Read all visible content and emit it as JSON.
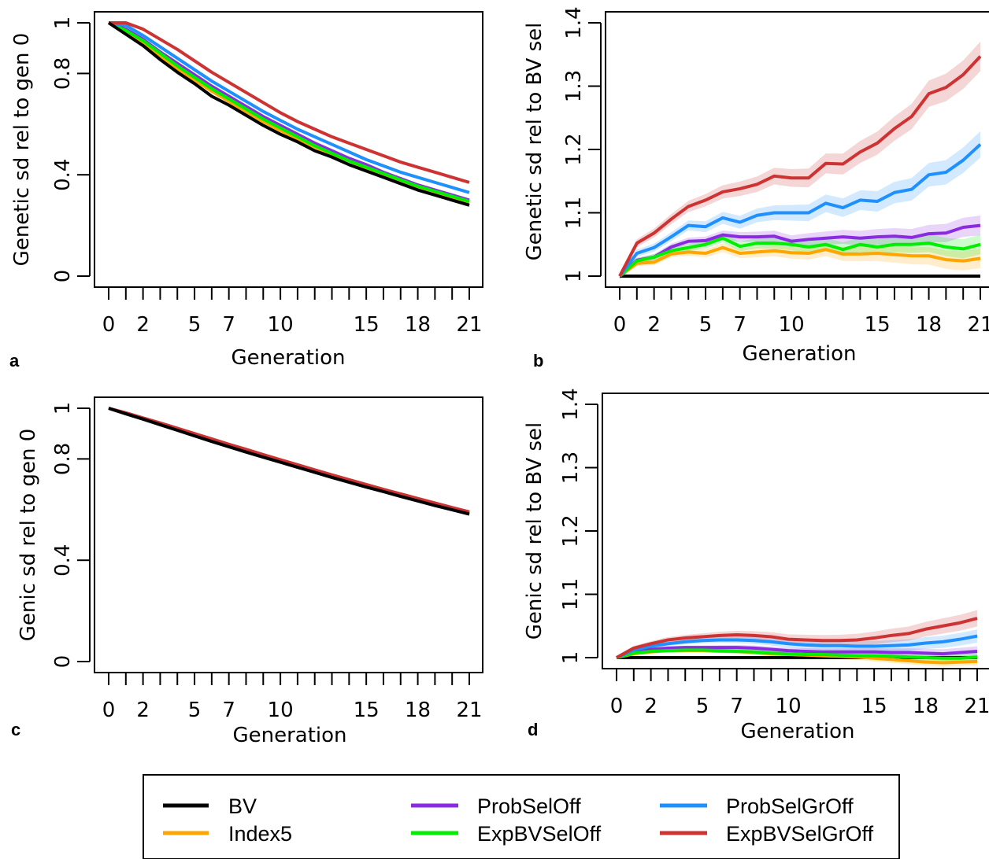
{
  "legend": {
    "entries": [
      {
        "name": "BV",
        "color": "#000000"
      },
      {
        "name": "Index5",
        "color": "#FFA500"
      },
      {
        "name": "ProbSelOff",
        "color": "#8A2BE2"
      },
      {
        "name": "ExpBVSelOff",
        "color": "#00EE00"
      },
      {
        "name": "ProbSelGrOff",
        "color": "#1E90FF"
      },
      {
        "name": "ExpBVSelGrOff",
        "color": "#CD3333"
      }
    ]
  },
  "chart_data": [
    {
      "panel": "a",
      "type": "line",
      "xlabel": "Generation",
      "ylabel": "Genetic sd rel to gen 0",
      "xlim": [
        0,
        21
      ],
      "ylim": [
        0,
        1
      ],
      "xticks": [
        0,
        2,
        5,
        7,
        10,
        15,
        18,
        21
      ],
      "yticks": [
        0,
        0.4,
        0.8,
        1
      ],
      "ytick_labels": [
        "0",
        "0.4",
        "0.8",
        "1"
      ],
      "x": [
        0,
        1,
        2,
        3,
        4,
        5,
        6,
        7,
        8,
        9,
        10,
        11,
        12,
        13,
        14,
        15,
        16,
        17,
        18,
        19,
        20,
        21
      ],
      "series": [
        {
          "name": "BV",
          "values": [
            1,
            0.955,
            0.91,
            0.855,
            0.805,
            0.76,
            0.71,
            0.675,
            0.635,
            0.595,
            0.56,
            0.53,
            0.495,
            0.47,
            0.44,
            0.415,
            0.39,
            0.365,
            0.34,
            0.32,
            0.3,
            0.28
          ]
        },
        {
          "name": "Index5",
          "values": [
            1,
            0.96,
            0.92,
            0.87,
            0.82,
            0.775,
            0.73,
            0.69,
            0.65,
            0.61,
            0.575,
            0.54,
            0.51,
            0.48,
            0.455,
            0.425,
            0.4,
            0.375,
            0.35,
            0.33,
            0.31,
            0.29
          ]
        },
        {
          "name": "ProbSelOff",
          "values": [
            1,
            0.975,
            0.935,
            0.885,
            0.84,
            0.795,
            0.75,
            0.71,
            0.67,
            0.63,
            0.595,
            0.56,
            0.525,
            0.495,
            0.465,
            0.44,
            0.41,
            0.385,
            0.36,
            0.34,
            0.32,
            0.3
          ]
        },
        {
          "name": "ExpBVSelOff",
          "values": [
            1,
            0.97,
            0.93,
            0.88,
            0.83,
            0.785,
            0.74,
            0.7,
            0.66,
            0.62,
            0.585,
            0.55,
            0.515,
            0.485,
            0.455,
            0.43,
            0.405,
            0.38,
            0.355,
            0.335,
            0.315,
            0.295
          ]
        },
        {
          "name": "ProbSelGrOff",
          "values": [
            1,
            0.99,
            0.95,
            0.905,
            0.86,
            0.815,
            0.77,
            0.73,
            0.69,
            0.65,
            0.615,
            0.58,
            0.55,
            0.52,
            0.49,
            0.46,
            0.435,
            0.41,
            0.39,
            0.37,
            0.35,
            0.33
          ]
        },
        {
          "name": "ExpBVSelGrOff",
          "values": [
            1,
            1,
            0.975,
            0.935,
            0.895,
            0.85,
            0.805,
            0.765,
            0.725,
            0.685,
            0.645,
            0.61,
            0.58,
            0.55,
            0.525,
            0.5,
            0.475,
            0.45,
            0.43,
            0.41,
            0.39,
            0.37
          ]
        }
      ]
    },
    {
      "panel": "b",
      "type": "line",
      "xlabel": "Generation",
      "ylabel": "Genetic sd rel to BV sel",
      "xlim": [
        0,
        21
      ],
      "ylim": [
        1,
        1.4
      ],
      "xticks": [
        0,
        2,
        5,
        7,
        10,
        15,
        18,
        21
      ],
      "yticks": [
        1,
        1.1,
        1.2,
        1.3,
        1.4
      ],
      "ytick_labels": [
        "1",
        "1.1",
        "1.2",
        "1.3",
        "1.4"
      ],
      "x": [
        0,
        1,
        2,
        3,
        4,
        5,
        6,
        7,
        8,
        9,
        10,
        11,
        12,
        13,
        14,
        15,
        16,
        17,
        18,
        19,
        20,
        21
      ],
      "series": [
        {
          "name": "BV",
          "values": [
            1,
            1,
            1,
            1,
            1,
            1,
            1,
            1,
            1,
            1,
            1,
            1,
            1,
            1,
            1,
            1,
            1,
            1,
            1,
            1,
            1,
            1
          ]
        },
        {
          "name": "Index5",
          "values": [
            1,
            1.02,
            1.022,
            1.035,
            1.038,
            1.036,
            1.045,
            1.036,
            1.038,
            1.04,
            1.037,
            1.036,
            1.042,
            1.035,
            1.035,
            1.036,
            1.034,
            1.032,
            1.032,
            1.026,
            1.024,
            1.028
          ],
          "band": 0.012
        },
        {
          "name": "ProbSelOff",
          "values": [
            1,
            1.025,
            1.03,
            1.046,
            1.055,
            1.056,
            1.065,
            1.062,
            1.062,
            1.063,
            1.055,
            1.058,
            1.06,
            1.062,
            1.06,
            1.062,
            1.063,
            1.061,
            1.067,
            1.068,
            1.077,
            1.08
          ],
          "band": 0.012
        },
        {
          "name": "ExpBVSelOff",
          "values": [
            1,
            1.024,
            1.03,
            1.04,
            1.045,
            1.05,
            1.06,
            1.047,
            1.052,
            1.052,
            1.05,
            1.046,
            1.05,
            1.042,
            1.05,
            1.046,
            1.05,
            1.05,
            1.052,
            1.046,
            1.043,
            1.05
          ],
          "band": 0.012
        },
        {
          "name": "ProbSelGrOff",
          "values": [
            1,
            1.036,
            1.045,
            1.062,
            1.08,
            1.078,
            1.092,
            1.085,
            1.096,
            1.1,
            1.1,
            1.1,
            1.115,
            1.108,
            1.12,
            1.118,
            1.132,
            1.137,
            1.16,
            1.164,
            1.183,
            1.208
          ],
          "band": 0.016
        },
        {
          "name": "ExpBVSelGrOff",
          "values": [
            1,
            1.052,
            1.068,
            1.09,
            1.11,
            1.12,
            1.133,
            1.138,
            1.145,
            1.158,
            1.155,
            1.155,
            1.178,
            1.177,
            1.196,
            1.21,
            1.233,
            1.252,
            1.288,
            1.298,
            1.318,
            1.347
          ],
          "band": 0.018
        }
      ]
    },
    {
      "panel": "c",
      "type": "line",
      "xlabel": "Generation",
      "ylabel": "Genic sd rel to gen 0",
      "xlim": [
        0,
        21
      ],
      "ylim": [
        0,
        1
      ],
      "xticks": [
        0,
        2,
        5,
        7,
        10,
        15,
        18,
        21
      ],
      "yticks": [
        0,
        0.4,
        0.8,
        1
      ],
      "ytick_labels": [
        "0",
        "0.4",
        "0.8",
        "1"
      ],
      "x": [
        0,
        1,
        2,
        3,
        4,
        5,
        6,
        7,
        8,
        9,
        10,
        11,
        12,
        13,
        14,
        15,
        16,
        17,
        18,
        19,
        20,
        21
      ],
      "series": [
        {
          "name": "BV",
          "values": [
            1,
            0.978,
            0.957,
            0.935,
            0.913,
            0.891,
            0.869,
            0.848,
            0.827,
            0.807,
            0.787,
            0.767,
            0.747,
            0.727,
            0.708,
            0.689,
            0.671,
            0.652,
            0.634,
            0.616,
            0.599,
            0.582
          ]
        },
        {
          "name": "Index5",
          "values": [
            1,
            0.979,
            0.958,
            0.936,
            0.915,
            0.893,
            0.871,
            0.85,
            0.829,
            0.809,
            0.789,
            0.769,
            0.749,
            0.729,
            0.71,
            0.691,
            0.672,
            0.654,
            0.636,
            0.618,
            0.6,
            0.582
          ]
        },
        {
          "name": "ProbSelOff",
          "values": [
            1,
            0.98,
            0.96,
            0.939,
            0.918,
            0.897,
            0.876,
            0.855,
            0.834,
            0.814,
            0.794,
            0.774,
            0.754,
            0.734,
            0.715,
            0.696,
            0.677,
            0.659,
            0.641,
            0.623,
            0.606,
            0.588
          ]
        },
        {
          "name": "ExpBVSelOff",
          "values": [
            1,
            0.98,
            0.96,
            0.939,
            0.918,
            0.897,
            0.876,
            0.855,
            0.834,
            0.813,
            0.793,
            0.773,
            0.753,
            0.733,
            0.714,
            0.695,
            0.676,
            0.658,
            0.64,
            0.622,
            0.604,
            0.586
          ]
        },
        {
          "name": "ProbSelGrOff",
          "values": [
            1,
            0.981,
            0.961,
            0.94,
            0.919,
            0.898,
            0.877,
            0.856,
            0.835,
            0.815,
            0.795,
            0.775,
            0.755,
            0.735,
            0.716,
            0.697,
            0.678,
            0.66,
            0.642,
            0.624,
            0.607,
            0.59
          ]
        },
        {
          "name": "ExpBVSelGrOff",
          "values": [
            1,
            0.982,
            0.962,
            0.942,
            0.921,
            0.9,
            0.879,
            0.858,
            0.838,
            0.817,
            0.797,
            0.777,
            0.757,
            0.737,
            0.718,
            0.699,
            0.68,
            0.662,
            0.644,
            0.626,
            0.608,
            0.591
          ]
        }
      ]
    },
    {
      "panel": "d",
      "type": "line",
      "xlabel": "Generation",
      "ylabel": "Genic sd rel to BV sel",
      "xlim": [
        0,
        21
      ],
      "ylim": [
        1,
        1.4
      ],
      "xticks": [
        0,
        2,
        5,
        7,
        10,
        15,
        18,
        21
      ],
      "yticks": [
        1,
        1.1,
        1.2,
        1.3,
        1.4
      ],
      "ytick_labels": [
        "1",
        "1.1",
        "1.2",
        "1.3",
        "1.4"
      ],
      "x": [
        0,
        1,
        2,
        3,
        4,
        5,
        6,
        7,
        8,
        9,
        10,
        11,
        12,
        13,
        14,
        15,
        16,
        17,
        18,
        19,
        20,
        21
      ],
      "series": [
        {
          "name": "BV",
          "values": [
            1,
            1,
            1,
            1,
            1,
            1,
            1,
            1,
            1,
            1,
            1,
            1,
            1,
            1,
            1,
            1,
            1,
            1,
            1,
            1,
            1,
            1
          ]
        },
        {
          "name": "Index5",
          "values": [
            1,
            1.006,
            1.009,
            1.011,
            1.011,
            1.011,
            1.01,
            1.01,
            1.008,
            1.006,
            1.005,
            1.004,
            1.003,
            1.002,
            1.001,
            0.999,
            0.997,
            0.995,
            0.993,
            0.992,
            0.993,
            0.994
          ],
          "band": 0.005
        },
        {
          "name": "ProbSelOff",
          "values": [
            1,
            1.01,
            1.013,
            1.015,
            1.016,
            1.016,
            1.016,
            1.016,
            1.015,
            1.013,
            1.011,
            1.01,
            1.009,
            1.009,
            1.009,
            1.009,
            1.008,
            1.008,
            1.007,
            1.006,
            1.008,
            1.01
          ],
          "band": 0.006
        },
        {
          "name": "ExpBVSelOff",
          "values": [
            1,
            1.007,
            1.01,
            1.011,
            1.012,
            1.012,
            1.011,
            1.01,
            1.009,
            1.007,
            1.006,
            1.005,
            1.005,
            1.004,
            1.003,
            1.003,
            1.002,
            1.001,
            1.0,
            0.999,
            0.999,
            1.001
          ],
          "band": 0.006
        },
        {
          "name": "ProbSelGrOff",
          "values": [
            1,
            1.012,
            1.018,
            1.022,
            1.025,
            1.027,
            1.028,
            1.028,
            1.027,
            1.025,
            1.022,
            1.02,
            1.019,
            1.019,
            1.018,
            1.018,
            1.019,
            1.02,
            1.023,
            1.025,
            1.029,
            1.034
          ],
          "band": 0.008
        },
        {
          "name": "ExpBVSelGrOff",
          "values": [
            1,
            1.015,
            1.022,
            1.028,
            1.031,
            1.033,
            1.035,
            1.036,
            1.035,
            1.033,
            1.029,
            1.028,
            1.027,
            1.027,
            1.028,
            1.031,
            1.035,
            1.038,
            1.045,
            1.05,
            1.055,
            1.062
          ],
          "band": 0.01
        }
      ]
    }
  ]
}
